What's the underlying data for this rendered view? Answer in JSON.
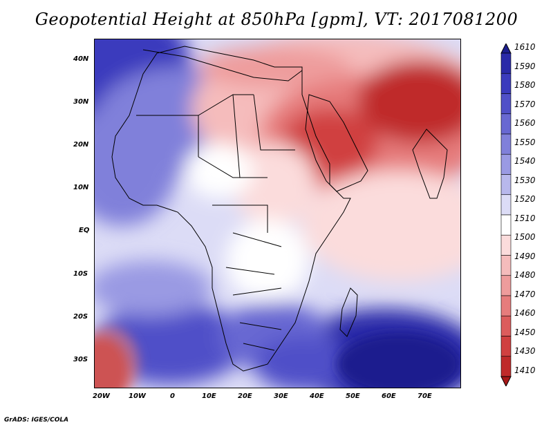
{
  "title": "Geopotential Height at 850hPa [gpm], VT: 2017081200",
  "footer": "GrADS: IGES/COLA",
  "y_axis_labels": [
    "40N",
    "30N",
    "20N",
    "10N",
    "EQ",
    "10S",
    "20S",
    "30S"
  ],
  "x_axis_labels": [
    "20W",
    "10W",
    "0",
    "10E",
    "20E",
    "30E",
    "40E",
    "50E",
    "60E",
    "70E"
  ],
  "colorbar": {
    "labels": [
      "1610",
      "1590",
      "1580",
      "1570",
      "1560",
      "1550",
      "1540",
      "1530",
      "1520",
      "1510",
      "1500",
      "1490",
      "1480",
      "1470",
      "1460",
      "1450",
      "1430",
      "1410"
    ],
    "colors": [
      "#1c1e8e",
      "#2a2aa8",
      "#3b3bbd",
      "#5050c8",
      "#6868d2",
      "#8080da",
      "#9a9ae3",
      "#b8b8ec",
      "#dcdcf6",
      "#ffffff",
      "#fbdcdc",
      "#f5bcbc",
      "#ee9c9c",
      "#e67c7c",
      "#dc5c5c",
      "#d04040",
      "#bf2a2a",
      "#a81818"
    ]
  },
  "colors": {
    "field_high": "#2a2aa8",
    "field_low": "#a81818",
    "coastline": "#000000"
  }
}
